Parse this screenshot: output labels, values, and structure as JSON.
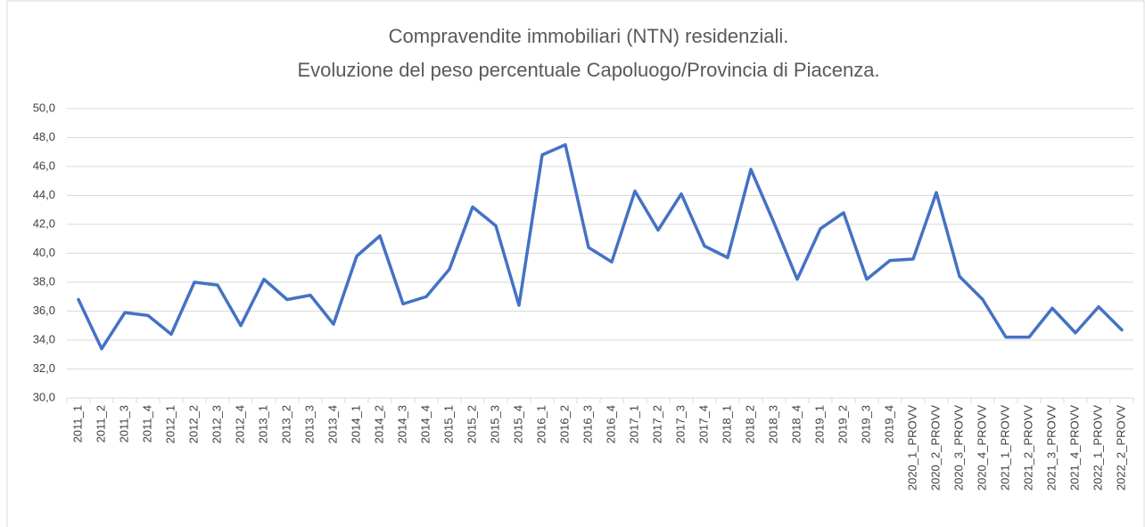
{
  "chart_data": {
    "type": "line",
    "title": [
      "Compravendite immobiliari (NTN) residenziali.",
      "Evoluzione del peso percentuale Capoluogo/Provincia di Piacenza."
    ],
    "categories": [
      "2011_1",
      "2011_2",
      "2011_3",
      "2011_4",
      "2012_1",
      "2012_2",
      "2012_3",
      "2012_4",
      "2013_1",
      "2013_2",
      "2013_3",
      "2013_4",
      "2014_1",
      "2014_2",
      "2014_3",
      "2014_4",
      "2015_1",
      "2015_2",
      "2015_3",
      "2015_4",
      "2016_1",
      "2016_2",
      "2016_3",
      "2016_4",
      "2017_1",
      "2017_2",
      "2017_3",
      "2017_4",
      "2018_1",
      "2018_2",
      "2018_3",
      "2018_4",
      "2019_1",
      "2019_2",
      "2019_3",
      "2019_4",
      "2020_1_PROVV",
      "2020_2_PROVV",
      "2020_3_PROVV",
      "2020_4_PROVV",
      "2021_1_PROVV",
      "2021_2_PROVV",
      "2021_3_PROVV",
      "2021_4_PROVV",
      "2022_1_PROVV",
      "2022_2_PROVV"
    ],
    "values": [
      36.8,
      33.4,
      35.9,
      35.7,
      34.4,
      38.0,
      37.8,
      35.0,
      38.2,
      36.8,
      37.1,
      35.1,
      39.8,
      41.2,
      36.5,
      37.0,
      38.9,
      43.2,
      41.9,
      36.4,
      46.8,
      47.5,
      40.4,
      39.4,
      44.3,
      41.6,
      44.1,
      40.5,
      39.7,
      45.8,
      42.1,
      38.2,
      41.7,
      42.8,
      38.2,
      39.5,
      39.6,
      44.2,
      38.4,
      36.8,
      34.2,
      34.2,
      36.2,
      34.5,
      36.3,
      34.7
    ],
    "color": "#4472c4",
    "ylim": [
      30,
      50
    ],
    "yticks": [
      {
        "value": 30,
        "label": "30,0"
      },
      {
        "value": 32,
        "label": "32,0"
      },
      {
        "value": 34,
        "label": "34,0"
      },
      {
        "value": 36,
        "label": "36,0"
      },
      {
        "value": 38,
        "label": "38,0"
      },
      {
        "value": 40,
        "label": "40,0"
      },
      {
        "value": 42,
        "label": "42,0"
      },
      {
        "value": 44,
        "label": "44,0"
      },
      {
        "value": 46,
        "label": "46,0"
      },
      {
        "value": 48,
        "label": "48,0"
      },
      {
        "value": 50,
        "label": "50,0"
      }
    ],
    "grid": true
  }
}
